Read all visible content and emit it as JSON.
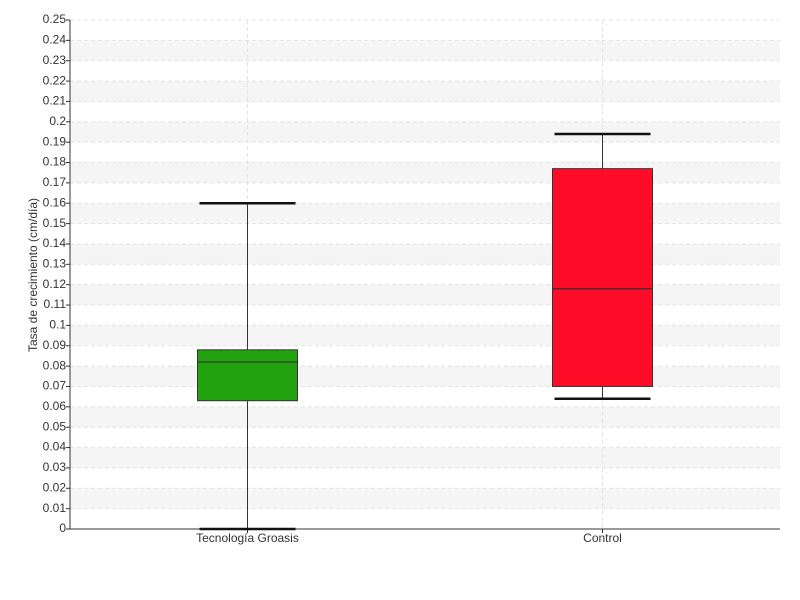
{
  "chart_data": {
    "type": "box",
    "y_label": "Tasa de crecimiento (cm/día)",
    "categories": [
      "Tecnología Groasis",
      "Control"
    ],
    "colors": [
      "#22a20e",
      "#ff0c29"
    ],
    "min": [
      0,
      0.064
    ],
    "q1": [
      0.063,
      0.07
    ],
    "median": [
      0.082,
      0.118
    ],
    "q3": [
      0.088,
      0.177
    ],
    "max": [
      0.16,
      0.194
    ],
    "ylim": [
      0,
      0.25
    ],
    "yticks": [
      0,
      0.01,
      0.02,
      0.03,
      0.04,
      0.05,
      0.06,
      0.07,
      0.08,
      0.09,
      0.1,
      0.11,
      0.12,
      0.13,
      0.14,
      0.15,
      0.16,
      0.17,
      0.18,
      0.19,
      0.2,
      0.21,
      0.22,
      0.23,
      0.24,
      0.25
    ],
    "grid": true
  }
}
